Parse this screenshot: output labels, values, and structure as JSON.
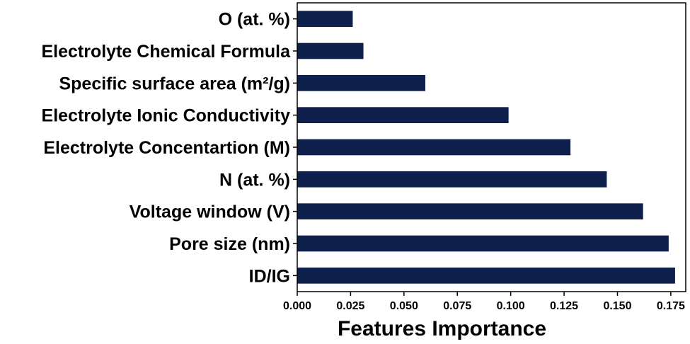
{
  "chart_data": {
    "type": "bar",
    "orientation": "horizontal",
    "title": "",
    "xlabel": "Features Importance",
    "ylabel": "",
    "xlim": [
      0,
      0.182
    ],
    "xticks": [
      0.0,
      0.025,
      0.05,
      0.075,
      0.1,
      0.125,
      0.15,
      0.175
    ],
    "xtick_labels": [
      "0.000",
      "0.025",
      "0.050",
      "0.075",
      "0.100",
      "0.125",
      "0.150",
      "0.175"
    ],
    "grid": false,
    "legend": "none",
    "bar_color": "#0d1f4a",
    "categories": [
      "O (at. %)",
      "Electrolyte Chemical Formula",
      "Specific surface area (m²/g)",
      "Electrolyte Ionic Conductivity",
      "Electrolyte Concentartion (M)",
      "N (at. %)",
      "Voltage window (V)",
      "Pore size (nm)",
      "ID/IG"
    ],
    "values": [
      0.026,
      0.031,
      0.06,
      0.099,
      0.128,
      0.145,
      0.162,
      0.174,
      0.177
    ]
  }
}
